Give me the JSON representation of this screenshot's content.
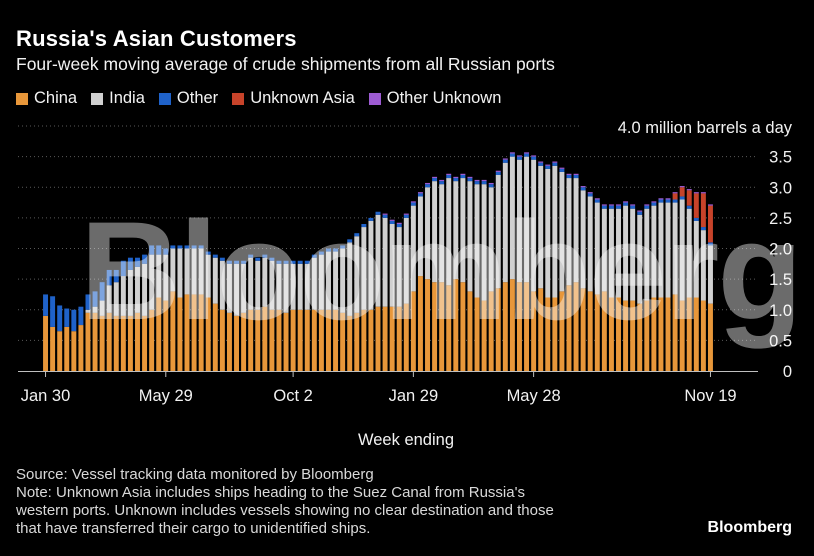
{
  "title": "Russia's Asian Customers",
  "subtitle": "Four-week moving average of crude shipments from all Russian ports",
  "legend": [
    {
      "label": "China",
      "color": "#e8973a"
    },
    {
      "label": "India",
      "color": "#d0d0d0"
    },
    {
      "label": "Other",
      "color": "#1f62c9"
    },
    {
      "label": "Unknown Asia",
      "color": "#c7432a"
    },
    {
      "label": "Other Unknown",
      "color": "#9d5bd2"
    }
  ],
  "source_line": "Source: Vessel tracking data monitored by Bloomberg",
  "note_lines": [
    "Note: Unknown Asia includes ships heading to the Suez Canal from Russia's",
    "western ports. Unknown includes vessels showing no clear destination and those",
    "that have transferred their cargo to unidentified ships."
  ],
  "brand": "Bloomberg",
  "watermark": "Bloomberg",
  "chart_data": {
    "type": "bar",
    "stacked": true,
    "title": "Russia's Asian Customers",
    "xlabel": "Week ending",
    "ylabel": "million barrels a day",
    "unit_label": "4.0 million barrels a day",
    "ylim": [
      0,
      4.0
    ],
    "yticks": [
      0,
      0.5,
      1.0,
      1.5,
      2.0,
      2.5,
      3.0,
      3.5
    ],
    "ytick_labels": [
      "0",
      "0.5",
      "1.0",
      "1.5",
      "2.0",
      "2.5",
      "3.0",
      "3.5"
    ],
    "grid": true,
    "xtick_labels": [
      {
        "index": 0,
        "label": "Jan 30"
      },
      {
        "index": 17,
        "label": "May 29"
      },
      {
        "index": 35,
        "label": "Oct 2"
      },
      {
        "index": 52,
        "label": "Jan 29"
      },
      {
        "index": 69,
        "label": "May 28"
      },
      {
        "index": 94,
        "label": "Nov 19"
      }
    ],
    "series": [
      {
        "name": "China",
        "color": "#e8973a",
        "values": [
          0.9,
          0.72,
          0.65,
          0.72,
          0.65,
          0.75,
          0.95,
          0.95,
          0.9,
          0.95,
          0.9,
          0.9,
          0.9,
          0.95,
          0.9,
          1.0,
          1.2,
          1.15,
          1.3,
          1.2,
          1.25,
          1.25,
          1.25,
          1.2,
          1.1,
          1.0,
          0.95,
          0.9,
          0.95,
          1.0,
          1.0,
          1.05,
          1.0,
          1.0,
          0.95,
          1.0,
          1.0,
          1.0,
          1.0,
          1.0,
          1.0,
          1.0,
          0.95,
          0.9,
          0.95,
          1.0,
          1.0,
          1.05,
          1.05,
          1.05,
          1.05,
          1.1,
          1.3,
          1.55,
          1.5,
          1.45,
          1.45,
          1.4,
          1.5,
          1.45,
          1.3,
          1.2,
          1.15,
          1.3,
          1.35,
          1.45,
          1.5,
          1.45,
          1.45,
          1.3,
          1.35,
          1.2,
          1.2,
          1.3,
          1.4,
          1.45,
          1.35,
          1.3,
          1.25,
          1.3,
          1.2,
          1.2,
          1.15,
          1.15,
          1.1,
          1.15,
          1.2,
          1.2,
          1.2,
          1.25,
          1.15,
          1.2,
          1.2,
          1.15,
          1.1
        ]
      },
      {
        "name": "India",
        "color": "#d0d0d0",
        "values": [
          0,
          0,
          0,
          0,
          0,
          0,
          0.05,
          0.1,
          0.25,
          0.45,
          0.55,
          0.65,
          0.75,
          0.75,
          0.85,
          0.9,
          0.7,
          0.75,
          0.7,
          0.8,
          0.75,
          0.75,
          0.75,
          0.7,
          0.75,
          0.8,
          0.8,
          0.85,
          0.8,
          0.85,
          0.8,
          0.8,
          0.8,
          0.75,
          0.8,
          0.75,
          0.75,
          0.75,
          0.85,
          0.9,
          0.95,
          0.95,
          1.05,
          1.2,
          1.25,
          1.35,
          1.45,
          1.5,
          1.45,
          1.35,
          1.3,
          1.4,
          1.4,
          1.3,
          1.5,
          1.65,
          1.6,
          1.75,
          1.6,
          1.7,
          1.8,
          1.85,
          1.9,
          1.7,
          1.85,
          1.95,
          2.0,
          2.0,
          2.05,
          2.15,
          2.0,
          2.1,
          2.15,
          1.95,
          1.75,
          1.7,
          1.6,
          1.55,
          1.5,
          1.35,
          1.45,
          1.45,
          1.55,
          1.5,
          1.45,
          1.5,
          1.5,
          1.55,
          1.55,
          1.5,
          1.65,
          1.45,
          1.25,
          1.15,
          0.95
        ]
      },
      {
        "name": "Other",
        "color": "#1f62c9",
        "values": [
          0.35,
          0.5,
          0.42,
          0.3,
          0.35,
          0.3,
          0.25,
          0.25,
          0.3,
          0.25,
          0.2,
          0.25,
          0.2,
          0.15,
          0.15,
          0.15,
          0.15,
          0.1,
          0.05,
          0.05,
          0.05,
          0.05,
          0.05,
          0.05,
          0.05,
          0.05,
          0.05,
          0.05,
          0.05,
          0.05,
          0.05,
          0.05,
          0.05,
          0.05,
          0.05,
          0.05,
          0.05,
          0.05,
          0.05,
          0.05,
          0.05,
          0.05,
          0.05,
          0.05,
          0.05,
          0.05,
          0.05,
          0.05,
          0.05,
          0.05,
          0.05,
          0.05,
          0.05,
          0.05,
          0.05,
          0.05,
          0.05,
          0.05,
          0.05,
          0.05,
          0.05,
          0.05,
          0.05,
          0.05,
          0.05,
          0.05,
          0.05,
          0.05,
          0.05,
          0.05,
          0.05,
          0.05,
          0.05,
          0.05,
          0.05,
          0.05,
          0.05,
          0.05,
          0.05,
          0.05,
          0.05,
          0.05,
          0.05,
          0.05,
          0.05,
          0.05,
          0.05,
          0.05,
          0.05,
          0.05,
          0.05,
          0.05,
          0.05,
          0.05,
          0.05
        ]
      },
      {
        "name": "Unknown Asia",
        "color": "#c7432a",
        "values": [
          0,
          0,
          0,
          0,
          0,
          0,
          0,
          0,
          0,
          0,
          0,
          0,
          0,
          0,
          0,
          0,
          0,
          0,
          0,
          0,
          0,
          0,
          0,
          0,
          0,
          0,
          0,
          0,
          0,
          0,
          0,
          0,
          0,
          0,
          0,
          0,
          0,
          0,
          0,
          0,
          0,
          0,
          0,
          0,
          0,
          0,
          0,
          0,
          0,
          0,
          0,
          0,
          0,
          0,
          0,
          0,
          0,
          0,
          0,
          0,
          0,
          0,
          0,
          0,
          0,
          0,
          0,
          0,
          0,
          0,
          0,
          0,
          0,
          0,
          0,
          0,
          0,
          0,
          0,
          0,
          0,
          0,
          0,
          0,
          0,
          0,
          0,
          0,
          0,
          0.1,
          0.15,
          0.25,
          0.4,
          0.55,
          0.6
        ]
      },
      {
        "name": "Other Unknown",
        "color": "#9d5bd2",
        "values": [
          0,
          0,
          0,
          0,
          0,
          0,
          0,
          0,
          0,
          0,
          0,
          0,
          0,
          0,
          0,
          0,
          0,
          0,
          0,
          0,
          0,
          0,
          0,
          0,
          0,
          0,
          0,
          0,
          0,
          0,
          0,
          0,
          0,
          0,
          0,
          0,
          0,
          0,
          0,
          0,
          0,
          0,
          0,
          0,
          0,
          0,
          0,
          0,
          0.02,
          0.02,
          0.02,
          0.02,
          0.02,
          0.02,
          0.02,
          0.02,
          0.02,
          0.02,
          0.02,
          0.02,
          0.02,
          0.02,
          0.02,
          0.02,
          0.02,
          0.02,
          0.02,
          0.02,
          0.02,
          0.02,
          0.02,
          0.02,
          0.02,
          0.02,
          0.02,
          0.02,
          0.02,
          0.02,
          0.02,
          0.02,
          0.02,
          0.02,
          0.02,
          0.02,
          0.02,
          0.02,
          0.02,
          0.02,
          0.02,
          0.02,
          0.02,
          0.02,
          0.02,
          0.02,
          0.02
        ]
      }
    ]
  }
}
